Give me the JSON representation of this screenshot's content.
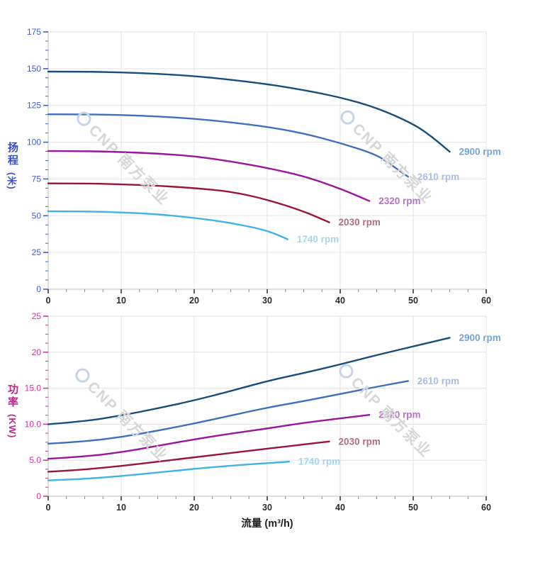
{
  "watermark": {
    "text": "CNP 南方泵业",
    "logo_icon": "cnp-logo-icon"
  },
  "chart_data": [
    {
      "type": "line",
      "title": "",
      "xlabel": "",
      "ylabel": "扬程 (米)",
      "ylabel_main": "扬程",
      "ylabel_unit": "(米)",
      "xlim": [
        0,
        60
      ],
      "ylim": [
        0,
        175
      ],
      "x_major": 10,
      "x_minor": 2.5,
      "y_major": 25,
      "y_minor": 6.25,
      "x_ticks": [
        "0",
        "10",
        "20",
        "30",
        "40",
        "50",
        "60"
      ],
      "y_ticks": [
        "0",
        "25",
        "50",
        "75",
        "100",
        "125",
        "150",
        "175"
      ],
      "axis_color": "#3d5fd1",
      "x_tick_color": "#2b2b2b",
      "grid": true,
      "legend_position": "end-of-line",
      "series": [
        {
          "name": "2900 rpm",
          "color": "#174e7d",
          "label_color": "#79a3d2",
          "points": [
            [
              0,
              148
            ],
            [
              5,
              148
            ],
            [
              10,
              147.5
            ],
            [
              15,
              146.5
            ],
            [
              20,
              145
            ],
            [
              25,
              142.5
            ],
            [
              30,
              139.5
            ],
            [
              35,
              135.5
            ],
            [
              40,
              130.5
            ],
            [
              45,
              123.5
            ],
            [
              50,
              112.5
            ],
            [
              52.5,
              104
            ],
            [
              55,
              93.5
            ]
          ]
        },
        {
          "name": "2610 rpm",
          "color": "#3f6fbe",
          "label_color": "#a6bee9",
          "points": [
            [
              0,
              119
            ],
            [
              5,
              119
            ],
            [
              10,
              118.5
            ],
            [
              15,
              117.5
            ],
            [
              20,
              116
            ],
            [
              25,
              113.5
            ],
            [
              30,
              110.5
            ],
            [
              35,
              106
            ],
            [
              40,
              99.5
            ],
            [
              45,
              91.5
            ],
            [
              47,
              84.5
            ],
            [
              49.3,
              76.5
            ]
          ]
        },
        {
          "name": "2320 rpm",
          "color": "#9a169d",
          "label_color": "#b573c6",
          "points": [
            [
              0,
              94
            ],
            [
              5,
              94
            ],
            [
              10,
              93.3
            ],
            [
              15,
              92.3
            ],
            [
              20,
              90.5
            ],
            [
              25,
              87
            ],
            [
              30,
              82.5
            ],
            [
              35,
              77
            ],
            [
              40,
              68.5
            ],
            [
              44,
              60
            ]
          ]
        },
        {
          "name": "2030 rpm",
          "color": "#9c1538",
          "label_color": "#b26e80",
          "points": [
            [
              0,
              72
            ],
            [
              5,
              72
            ],
            [
              10,
              71.4
            ],
            [
              15,
              70.4
            ],
            [
              20,
              68.8
            ],
            [
              25,
              66.5
            ],
            [
              30,
              61
            ],
            [
              35,
              53
            ],
            [
              38.5,
              45.5
            ]
          ]
        },
        {
          "name": "1740 rpm",
          "color": "#3fb2e6",
          "label_color": "#a5d5f2",
          "points": [
            [
              0,
              53
            ],
            [
              5,
              53
            ],
            [
              10,
              52.3
            ],
            [
              15,
              51
            ],
            [
              20,
              48.6
            ],
            [
              25,
              45.2
            ],
            [
              30,
              40
            ],
            [
              32.8,
              34
            ]
          ]
        }
      ]
    },
    {
      "type": "line",
      "title": "",
      "xlabel": "流量 (m³/h)",
      "ylabel": "功率 (KW)",
      "ylabel_main": "功率",
      "ylabel_unit": "(KW)",
      "xlim": [
        0,
        60
      ],
      "ylim": [
        0,
        25
      ],
      "x_major": 10,
      "x_minor": 2.5,
      "y_major": 5,
      "y_minor": 1.25,
      "x_ticks": [
        "0",
        "10",
        "20",
        "30",
        "40",
        "50",
        "60"
      ],
      "y_ticks": [
        "0",
        "5.0",
        "10.0",
        "15.0",
        "20",
        "25"
      ],
      "axis_color": "#d2359f",
      "x_tick_color": "#2b2b2b",
      "grid": true,
      "legend_position": "end-of-line",
      "series": [
        {
          "name": "2900 rpm",
          "color": "#174e7d",
          "label_color": "#79a3d2",
          "points": [
            [
              0,
              10
            ],
            [
              5,
              10.4
            ],
            [
              10,
              11.2
            ],
            [
              15,
              12.2
            ],
            [
              20,
              13.3
            ],
            [
              25,
              14.6
            ],
            [
              30,
              16
            ],
            [
              35,
              17.1
            ],
            [
              40,
              18.3
            ],
            [
              45,
              19.6
            ],
            [
              50,
              20.8
            ],
            [
              55,
              22
            ]
          ]
        },
        {
          "name": "2610 rpm",
          "color": "#3f6fbe",
          "label_color": "#a6bee9",
          "points": [
            [
              0,
              7.3
            ],
            [
              5,
              7.6
            ],
            [
              10,
              8.2
            ],
            [
              15,
              9.1
            ],
            [
              20,
              10.1
            ],
            [
              25,
              11.2
            ],
            [
              30,
              12.3
            ],
            [
              35,
              13.2
            ],
            [
              40,
              14.2
            ],
            [
              45,
              15.2
            ],
            [
              49.3,
              16
            ]
          ]
        },
        {
          "name": "2320 rpm",
          "color": "#9a169d",
          "label_color": "#b573c6",
          "points": [
            [
              0,
              5.2
            ],
            [
              5,
              5.5
            ],
            [
              10,
              6.1
            ],
            [
              15,
              7
            ],
            [
              20,
              7.9
            ],
            [
              25,
              8.7
            ],
            [
              30,
              9.4
            ],
            [
              35,
              10.2
            ],
            [
              40,
              10.8
            ],
            [
              44,
              11.3
            ]
          ]
        },
        {
          "name": "2030 rpm",
          "color": "#9c1538",
          "label_color": "#b26e80",
          "points": [
            [
              0,
              3.4
            ],
            [
              5,
              3.7
            ],
            [
              10,
              4.2
            ],
            [
              15,
              4.8
            ],
            [
              20,
              5.4
            ],
            [
              25,
              6
            ],
            [
              30,
              6.6
            ],
            [
              35,
              7.2
            ],
            [
              38.5,
              7.6
            ]
          ]
        },
        {
          "name": "1740 rpm",
          "color": "#3fb2e6",
          "label_color": "#a5d5f2",
          "points": [
            [
              0,
              2.2
            ],
            [
              5,
              2.4
            ],
            [
              10,
              2.8
            ],
            [
              15,
              3.3
            ],
            [
              20,
              3.8
            ],
            [
              25,
              4.25
            ],
            [
              30,
              4.6
            ],
            [
              33,
              4.8
            ]
          ]
        }
      ]
    }
  ]
}
